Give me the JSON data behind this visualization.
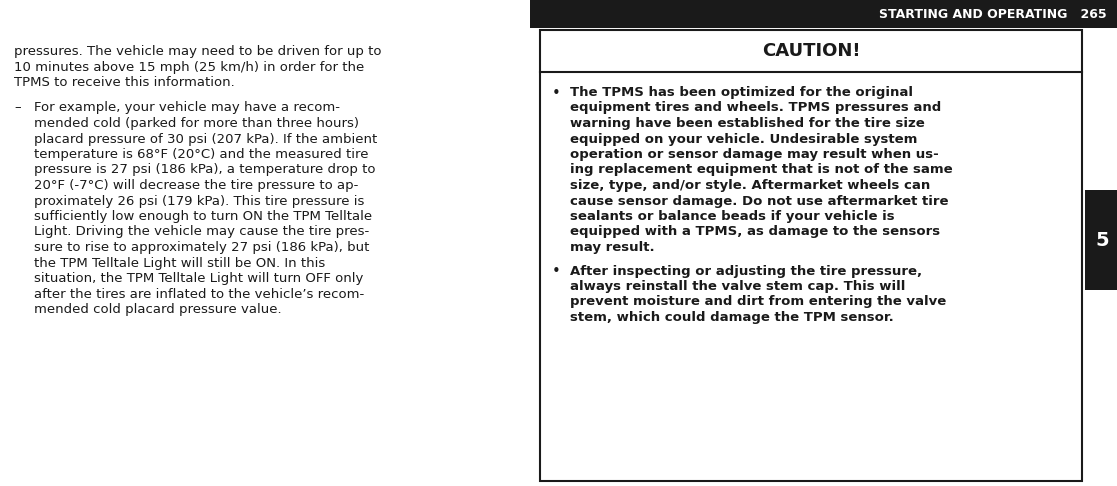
{
  "bg_color": "#ffffff",
  "text_color": "#1a1a1a",
  "header_bg": "#1a1a1a",
  "header_text": "STARTING AND OPERATING   265",
  "header_text_color": "#ffffff",
  "tab_bg": "#1a1a1a",
  "tab_text": "5",
  "tab_text_color": "#ffffff",
  "left_para1": "pressures. The vehicle may need to be driven for up to 10 minutes above 15 mph (25 km/h) in order for the TPMS to receive this information.",
  "left_dash_para": "For example, your vehicle may have a recom-\nmended cold (parked for more than three hours)\nplacard pressure of 30 psi (207 kPa). If the ambient\ntemperature is 68°F (20°C) and the measured tire\npressure is 27 psi (186 kPa), a temperature drop to\n20°F (-7°C) will decrease the tire pressure to ap-\nproximately 26 psi (179 kPa). This tire pressure is\nsufficiently low enough to turn ON the TPM Telltale\nLight. Driving the vehicle may cause the tire pres-\nsure to rise to approximately 27 psi (186 kPa), but\nthe TPM Telltale Light will still be ON. In this\nsituation, the TPM Telltale Light will turn OFF only\nafter the tires are inflated to the vehicle’s recom-\nmended cold placard pressure value.",
  "caution_title": "CAUTION!",
  "bullet1_lines": [
    "The TPMS has been optimized for the original",
    "equipment tires and wheels. TPMS pressures and",
    "warning have been established for the tire size",
    "equipped on your vehicle. Undesirable system",
    "operation or sensor damage may result when us-",
    "ing replacement equipment that is not of the same",
    "size, type, and/or style. Aftermarket wheels can",
    "cause sensor damage. Do not use aftermarket tire",
    "sealants or balance beads if your vehicle is",
    "equipped with a TPMS, as damage to the sensors",
    "may result."
  ],
  "bullet2_lines": [
    "After inspecting or adjusting the tire pressure,",
    "always reinstall the valve stem cap. This will",
    "prevent moisture and dirt from entering the valve",
    "stem, which could damage the TPM sensor."
  ],
  "fig_width": 11.17,
  "fig_height": 4.86,
  "dpi": 100
}
